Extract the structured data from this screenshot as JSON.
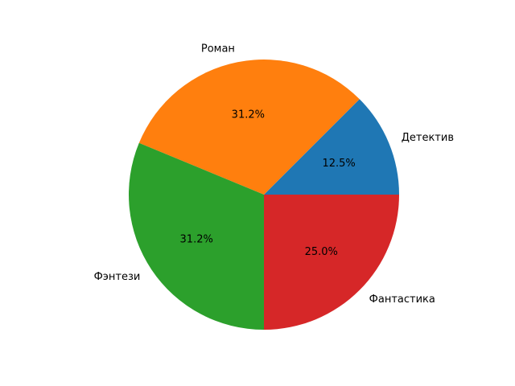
{
  "chart_data": {
    "type": "pie",
    "title": "",
    "start_angle_deg": 0,
    "direction": "counterclockwise",
    "slices": [
      {
        "label": "Детектив",
        "value": 12.5,
        "pct_label": "12.5%",
        "color": "#1f77b4"
      },
      {
        "label": "Роман",
        "value": 31.25,
        "pct_label": "31.2%",
        "color": "#ff7f0e"
      },
      {
        "label": "Фэнтези",
        "value": 31.25,
        "pct_label": "31.2%",
        "color": "#2ca02c"
      },
      {
        "label": "Фантастика",
        "value": 25.0,
        "pct_label": "25.0%",
        "color": "#d62728"
      }
    ]
  }
}
